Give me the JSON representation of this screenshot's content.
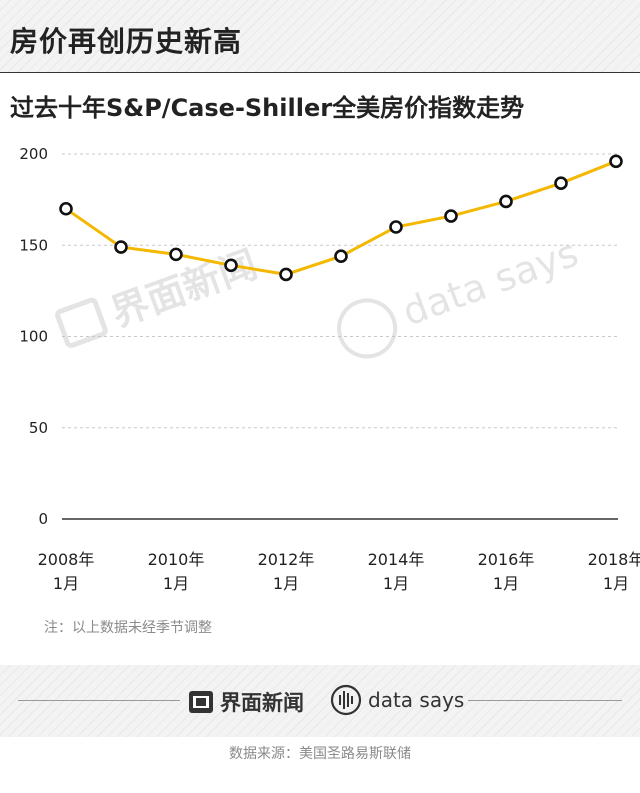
{
  "header": {
    "title": "房价再创历史新高"
  },
  "watermark": {
    "cn": "界面新闻",
    "en": "data says"
  },
  "chart_data": {
    "type": "line",
    "title": "过去十年S&P/Case-Shiller全美房价指数走势",
    "xlabel": "",
    "ylabel": "",
    "ylim": [
      0,
      200
    ],
    "yticks": [
      0,
      50,
      100,
      150,
      200
    ],
    "xtick_labels": [
      [
        "2008年",
        "1月"
      ],
      [
        "2010年",
        "1月"
      ],
      [
        "2012年",
        "1月"
      ],
      [
        "2014年",
        "1月"
      ],
      [
        "2016年",
        "1月"
      ],
      [
        "2018年",
        "1月"
      ]
    ],
    "x": [
      "2008-01",
      "2009-01",
      "2010-01",
      "2011-01",
      "2012-01",
      "2013-01",
      "2014-01",
      "2015-01",
      "2016-01",
      "2017-01",
      "2018-01"
    ],
    "series": [
      {
        "values": [
          170,
          149,
          145,
          139,
          134,
          144,
          160,
          166,
          174,
          184,
          196
        ]
      }
    ],
    "grid": true,
    "colors": {
      "line": "#f5b800",
      "marker_fill": "#ffffff",
      "marker_edge": "#111111",
      "grid": "#c8c8c8",
      "axis": "#333333"
    }
  },
  "note": "注：以上数据未经季节调整",
  "footer": {
    "brand_cn": "界面新闻",
    "brand_en": "data says",
    "source": "数据来源：美国圣路易斯联储"
  }
}
